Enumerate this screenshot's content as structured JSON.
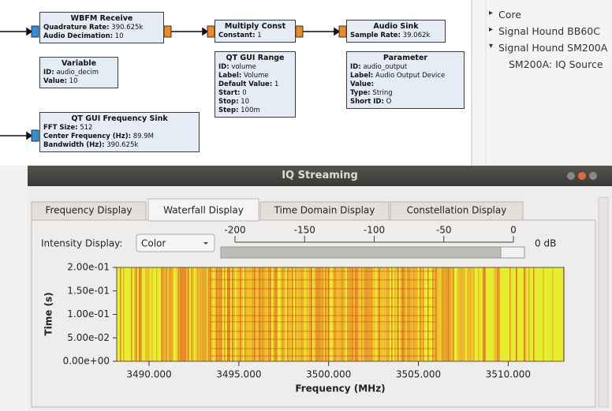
{
  "blocks": [
    {
      "title": "WBFM Receive",
      "rows": [
        {
          "label": "Quadrature Rate:",
          "value": "390.625k"
        },
        {
          "label": "Audio Decimation:",
          "value": "10"
        }
      ]
    },
    {
      "title": "Variable",
      "rows": [
        {
          "label": "ID:",
          "value": "audio_decim"
        },
        {
          "label": "Value:",
          "value": "10"
        }
      ]
    },
    {
      "title": "QT GUI Frequency Sink",
      "rows": [
        {
          "label": "FFT Size:",
          "value": "512"
        },
        {
          "label": "Center Frequency (Hz):",
          "value": "89.9M"
        },
        {
          "label": "Bandwidth (Hz):",
          "value": "390.625k"
        }
      ]
    },
    {
      "title": "Multiply Const",
      "rows": [
        {
          "label": "Constant:",
          "value": "1"
        }
      ]
    },
    {
      "title": "QT GUI Range",
      "rows": [
        {
          "label": "ID:",
          "value": "volume"
        },
        {
          "label": "Label:",
          "value": "Volume"
        },
        {
          "label": "Default Value:",
          "value": "1"
        },
        {
          "label": "Start:",
          "value": "0"
        },
        {
          "label": "Stop:",
          "value": "10"
        },
        {
          "label": "Step:",
          "value": "100m"
        }
      ]
    },
    {
      "title": "Audio Sink",
      "rows": [
        {
          "label": "Sample Rate:",
          "value": "39.062k"
        }
      ]
    },
    {
      "title": "Parameter",
      "rows": [
        {
          "label": "ID:",
          "value": "audio_output"
        },
        {
          "label": "Label:",
          "value": "Audio Output Device"
        },
        {
          "label": "Value:"
        },
        {
          "label": "Type:",
          "value": "String"
        },
        {
          "label": "Short ID:",
          "value": "O"
        }
      ]
    }
  ],
  "tree": [
    "Core",
    "Signal Hound BB60C",
    "Signal Hound SM200A",
    "SM200A: IQ Source"
  ],
  "window": {
    "title": "IQ Streaming",
    "tabs": [
      "Frequency Display",
      "Waterfall Display",
      "Time Domain Display",
      "Constellation Display"
    ],
    "intensity": {
      "label": "Intensity Display:",
      "value": "Color",
      "lim": [
        -200,
        0
      ],
      "ticks": [
        -200,
        -150,
        -100,
        -50,
        0
      ],
      "unit_label": "0 dB"
    },
    "plot": {
      "y_label": "Time (s)",
      "x_label": "Frequency (MHz)",
      "ylim": [
        0,
        0.2
      ],
      "yticks": [
        {
          "value": 0,
          "label": "0.00e+00"
        },
        {
          "value": 0.05,
          "label": "5.00e-02"
        },
        {
          "value": 0.1,
          "label": "1.00e-01"
        },
        {
          "value": 0.15,
          "label": "1.50e-01"
        },
        {
          "value": 0.2,
          "label": "2.00e-01"
        }
      ],
      "xlim": [
        3488.2,
        3513.1
      ],
      "xticks": [
        {
          "value": 3490,
          "label": "3490.000"
        },
        {
          "value": 3495,
          "label": "3495.000"
        },
        {
          "value": 3500,
          "label": "3500.000"
        },
        {
          "value": 3505,
          "label": "3505.000"
        },
        {
          "value": 3510,
          "label": "3510.000"
        }
      ]
    }
  }
}
